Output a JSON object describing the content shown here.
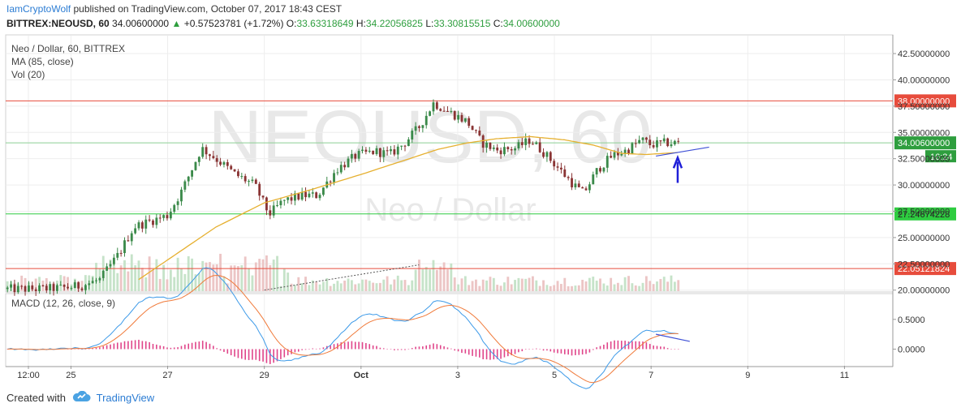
{
  "header": {
    "author": "IamCryptoWolf",
    "published": "published on TradingView.com, October 07, 2017 18:43 CEST"
  },
  "symbol_line": {
    "symbol": "BITTREX:NEOUSD, 60",
    "last": "34.00600000",
    "arrow": "▲",
    "change": "+0.57523781 (+1.72%)",
    "o_label": "O:",
    "o_value": "33.63318649",
    "h_label": "H:",
    "h_value": "34.22056825",
    "l_label": "L:",
    "l_value": "33.30815515",
    "c_label": "C:",
    "c_value": "34.00600000"
  },
  "legend": {
    "line1": "Neo / Dollar, 60, BITTREX",
    "line2": "MA (85, close)",
    "line3": "Vol (20)",
    "macd": "MACD (12, 26, close, 9)"
  },
  "watermark": {
    "big": "NEOUSD, 60",
    "small": "Neo / Dollar"
  },
  "footer": {
    "created_with": "Created with",
    "brand": "TradingView"
  },
  "colors": {
    "up": "#3b8a4a",
    "down": "#8a3434",
    "ma": "#e6b030",
    "macd": "#3d9ae8",
    "signal": "#f07a3a",
    "hist": "#e0458a",
    "resistance": "#e74c3c",
    "support": "#2ecc40",
    "price_line": "#2e9e3e"
  },
  "chart_data": {
    "type": "candlestick",
    "title": "Neo / Dollar, 60, BITTREX",
    "y_ticks": [
      "42.50000000",
      "40.00000000",
      "37.50000000",
      "35.00000000",
      "32.50000000",
      "30.00000000",
      "27.50000000",
      "25.00000000",
      "22.50000000",
      "20.00000000"
    ],
    "y_tick_values": [
      42.5,
      40,
      37.5,
      35,
      32.5,
      30,
      27.5,
      25,
      22.5,
      20
    ],
    "ylim": [
      19.9,
      44.2
    ],
    "x_ticks": [
      "12:00",
      "25",
      "27",
      "29",
      "Oct",
      "3",
      "5",
      "7",
      "9",
      "11"
    ],
    "x_tick_positions": [
      0.12,
      1,
      3,
      5,
      7,
      9,
      11,
      13,
      15,
      17
    ],
    "x_domain_days": [
      -0.35,
      18
    ],
    "x_last_bar_day": 13.6,
    "h_lines": [
      {
        "value": 38.0,
        "label": "38.00000000",
        "kind": "resistance"
      },
      {
        "value": 27.24674228,
        "label": "27.24674228",
        "kind": "support"
      },
      {
        "value": 22.05121824,
        "label": "22.05121824",
        "kind": "resistance"
      }
    ],
    "last_price": {
      "value": 34.006,
      "label": "34.00600000",
      "countdown": "16:24"
    },
    "price_keypoints": [
      [
        -0.35,
        20.1
      ],
      [
        0.3,
        20.1
      ],
      [
        0.8,
        20.2
      ],
      [
        1.2,
        20.4
      ],
      [
        1.6,
        21.0
      ],
      [
        2.0,
        23.5
      ],
      [
        2.3,
        26.0
      ],
      [
        2.6,
        26.5
      ],
      [
        3.0,
        27.1
      ],
      [
        3.3,
        29.5
      ],
      [
        3.7,
        33.5
      ],
      [
        4.0,
        32.5
      ],
      [
        4.4,
        31.0
      ],
      [
        4.8,
        30.0
      ],
      [
        5.1,
        27.2
      ],
      [
        5.4,
        28.5
      ],
      [
        5.8,
        29.0
      ],
      [
        6.1,
        29.0
      ],
      [
        6.5,
        31.5
      ],
      [
        6.9,
        32.8
      ],
      [
        7.3,
        33.2
      ],
      [
        7.6,
        32.9
      ],
      [
        7.9,
        34.0
      ],
      [
        8.2,
        35.5
      ],
      [
        8.5,
        37.8
      ],
      [
        8.8,
        37.0
      ],
      [
        9.2,
        36.0
      ],
      [
        9.5,
        34.0
      ],
      [
        9.8,
        33.3
      ],
      [
        10.2,
        33.5
      ],
      [
        10.5,
        34.3
      ],
      [
        10.8,
        33.0
      ],
      [
        11.1,
        31.5
      ],
      [
        11.4,
        30.0
      ],
      [
        11.6,
        29.2
      ],
      [
        11.9,
        31.5
      ],
      [
        12.2,
        32.8
      ],
      [
        12.5,
        33.3
      ],
      [
        12.8,
        34.3
      ],
      [
        13.0,
        33.8
      ],
      [
        13.3,
        34.0
      ],
      [
        13.6,
        34.0
      ]
    ],
    "ma_keypoints": [
      [
        2.4,
        21.0
      ],
      [
        3.2,
        23.5
      ],
      [
        4.0,
        26.0
      ],
      [
        5.0,
        28.3
      ],
      [
        6.0,
        29.6
      ],
      [
        7.0,
        31.0
      ],
      [
        8.0,
        32.5
      ],
      [
        8.6,
        33.4
      ],
      [
        9.2,
        34.0
      ],
      [
        9.8,
        34.4
      ],
      [
        10.5,
        34.6
      ],
      [
        11.2,
        34.3
      ],
      [
        11.8,
        33.8
      ],
      [
        12.4,
        33.0
      ],
      [
        12.9,
        32.9
      ],
      [
        13.6,
        33.1
      ]
    ],
    "macd_yticks": [
      "0.5000",
      "0.0000"
    ],
    "macd_ytick_values": [
      0.5,
      0.0
    ],
    "macd_ylim": [
      -0.28,
      0.92
    ],
    "volume_trendline": [
      [
        5.0,
        20.0
      ],
      [
        8.2,
        22.4
      ]
    ],
    "price_trendline": [
      [
        13.1,
        32.75
      ],
      [
        14.2,
        33.6
      ]
    ],
    "macd_trendline": [
      [
        13.1,
        0.25
      ],
      [
        13.8,
        0.13
      ]
    ]
  }
}
